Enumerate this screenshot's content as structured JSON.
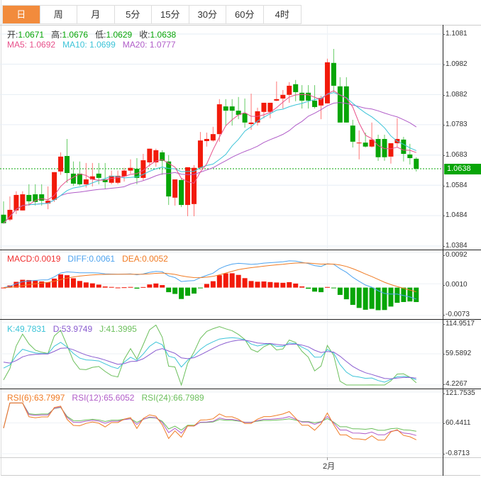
{
  "tabs": [
    "日",
    "周",
    "月",
    "5分",
    "15分",
    "30分",
    "60分",
    "4时"
  ],
  "active_tab": 0,
  "ohlc": {
    "open_label": "开:",
    "open": "1.0671",
    "high_label": "高:",
    "high": "1.0676",
    "low_label": "低:",
    "low": "1.0629",
    "close_label": "收:",
    "close": "1.0638"
  },
  "ma": {
    "ma5": "MA5: 1.0692",
    "ma10": "MA10: 1.0699",
    "ma20": "MA20: 1.0777"
  },
  "macd": {
    "macd": "MACD:0.0019",
    "diff": "DIFF:0.0061",
    "dea": "DEA:0.0052"
  },
  "kdj": {
    "k": "K:49.7831",
    "d": "D:53.9749",
    "j": "J:41.3995"
  },
  "rsi": {
    "r6": "RSI(6):63.7997",
    "r12": "RSI(12):65.6052",
    "r24": "RSI(24):66.7989"
  },
  "current_price": "1.0638",
  "x_label": "2月",
  "colors": {
    "up": "#f21a0a",
    "down": "#07a507",
    "ma5": "#e8508a",
    "ma10": "#3cc4d8",
    "ma20": "#b05cc8",
    "diff": "#4da3ef",
    "dea": "#f07b24",
    "k": "#3cc4d8",
    "d": "#8a5cd0",
    "j": "#6bbf5b",
    "rsi6": "#f07b24",
    "rsi12": "#b05cc8",
    "rsi24": "#6bbf5b",
    "accent": "#f28b3c"
  },
  "chart_data": {
    "type": "candlestick",
    "price_ticks": [
      "1.1081",
      "1.0982",
      "1.0882",
      "1.0783",
      "1.0683",
      "1.0584",
      "1.0484",
      "1.0384"
    ],
    "price_range": [
      1.0384,
      1.1081
    ],
    "macd_ticks": [
      "0.0092",
      "0.0010",
      "-0.0073"
    ],
    "kdj_ticks": [
      "114.9517",
      "59.5892",
      "4.2267"
    ],
    "rsi_ticks": [
      "121.7535",
      "60.4411",
      "-0.8713"
    ],
    "month_marker_index": 51,
    "candles": [
      [
        1.0487,
        1.0531,
        1.0457,
        1.0459
      ],
      [
        1.0471,
        1.0547,
        1.0466,
        1.0503
      ],
      [
        1.0501,
        1.0564,
        1.0489,
        1.0552
      ],
      [
        1.0501,
        1.0564,
        1.0501,
        1.0554
      ],
      [
        1.0552,
        1.0587,
        1.0517,
        1.0531
      ],
      [
        1.0554,
        1.0587,
        1.0517,
        1.0529
      ],
      [
        1.0554,
        1.0587,
        1.0517,
        1.0533
      ],
      [
        1.0524,
        1.058,
        1.0505,
        1.0533
      ],
      [
        1.0536,
        1.0627,
        1.0529,
        1.0627
      ],
      [
        1.0629,
        1.0692,
        1.0618,
        1.0678
      ],
      [
        1.068,
        1.0736,
        1.0592,
        1.0624
      ],
      [
        1.0622,
        1.0662,
        1.0582,
        1.0589
      ],
      [
        1.0622,
        1.0662,
        1.0582,
        1.0587
      ],
      [
        1.0587,
        1.0657,
        1.0576,
        1.0603
      ],
      [
        1.0603,
        1.0657,
        1.058,
        1.0613
      ],
      [
        1.0622,
        1.0657,
        1.0587,
        1.0608
      ],
      [
        1.0603,
        1.0657,
        1.0571,
        1.0594
      ],
      [
        1.0592,
        1.0632,
        1.0587,
        1.0615
      ],
      [
        1.0592,
        1.0632,
        1.0587,
        1.0615
      ],
      [
        1.0613,
        1.0641,
        1.0596,
        1.0632
      ],
      [
        1.0632,
        1.0669,
        1.0622,
        1.0641
      ],
      [
        1.0638,
        1.0673,
        1.0587,
        1.0608
      ],
      [
        1.0608,
        1.0687,
        1.0599,
        1.0666
      ],
      [
        1.0659,
        1.0704,
        1.0645,
        1.0704
      ],
      [
        1.0659,
        1.0704,
        1.0645,
        1.0699
      ],
      [
        1.0692,
        1.0699,
        1.0618,
        1.0664
      ],
      [
        1.0662,
        1.0683,
        1.0519,
        1.0547
      ],
      [
        1.0543,
        1.0603,
        1.0517,
        1.0603
      ],
      [
        1.0601,
        1.0606,
        1.0512,
        1.0519
      ],
      [
        1.0519,
        1.0643,
        1.0482,
        1.0643
      ],
      [
        1.0522,
        1.065,
        1.0482,
        1.0641
      ],
      [
        1.0641,
        1.0759,
        1.0634,
        1.0731
      ],
      [
        1.0729,
        1.0757,
        1.0711,
        1.0736
      ],
      [
        1.0731,
        1.0776,
        1.0727,
        1.0752
      ],
      [
        1.0752,
        1.0867,
        1.0727,
        1.085
      ],
      [
        1.0843,
        1.0867,
        1.078,
        1.0829
      ],
      [
        1.0843,
        1.0867,
        1.078,
        1.0829
      ],
      [
        1.0829,
        1.0874,
        1.0801,
        1.0815
      ],
      [
        1.082,
        1.0869,
        1.0773,
        1.079
      ],
      [
        1.0785,
        1.0885,
        1.0766,
        1.079
      ],
      [
        1.079,
        1.0839,
        1.078,
        1.0827
      ],
      [
        1.0825,
        1.0855,
        1.0804,
        1.0855
      ],
      [
        1.0825,
        1.0855,
        1.0804,
        1.0855
      ],
      [
        1.0862,
        1.0925,
        1.086,
        1.0867
      ],
      [
        1.0869,
        1.0897,
        1.0836,
        1.0881
      ],
      [
        1.0881,
        1.0923,
        1.0855,
        1.0911
      ],
      [
        1.0916,
        1.093,
        1.086,
        1.089
      ],
      [
        1.0888,
        1.0913,
        1.0836,
        1.0862
      ],
      [
        1.0888,
        1.0913,
        1.0836,
        1.0862
      ],
      [
        1.0862,
        1.0913,
        1.0836,
        1.0841
      ],
      [
        1.0846,
        1.0878,
        1.0801,
        1.0871
      ],
      [
        1.0853,
        1.1,
        1.0853,
        1.0988
      ],
      [
        1.0986,
        1.1032,
        1.089,
        1.0911
      ],
      [
        1.0909,
        1.0939,
        1.079,
        1.079
      ],
      [
        1.0909,
        1.0939,
        1.079,
        1.079
      ],
      [
        1.078,
        1.0799,
        1.0708,
        1.0727
      ],
      [
        1.0722,
        1.0764,
        1.0669,
        1.0724
      ],
      [
        1.0724,
        1.0757,
        1.0708,
        1.0711
      ],
      [
        1.0711,
        1.079,
        1.0708,
        1.0734
      ],
      [
        1.0736,
        1.075,
        1.0664,
        1.0676
      ],
      [
        1.0736,
        1.075,
        1.0664,
        1.0676
      ],
      [
        1.0678,
        1.0722,
        1.0655,
        1.0722
      ],
      [
        1.0722,
        1.0804,
        1.0708,
        1.0736
      ],
      [
        1.0734,
        1.0743,
        1.0662,
        1.0687
      ],
      [
        1.0685,
        1.072,
        1.0652,
        1.0673
      ],
      [
        1.0671,
        1.0676,
        1.0629,
        1.0638
      ]
    ]
  }
}
